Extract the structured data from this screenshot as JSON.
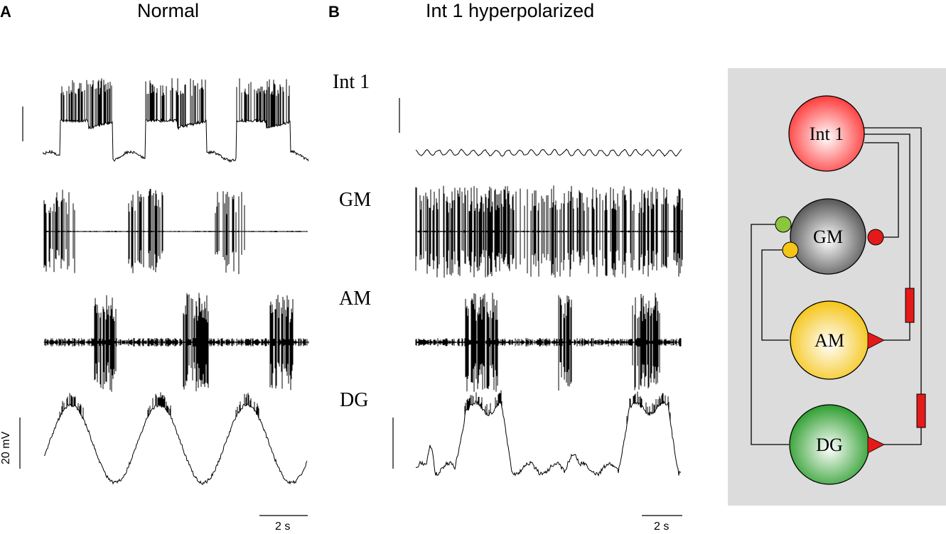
{
  "panels": {
    "a": {
      "letter": "A",
      "title": "Normal"
    },
    "b": {
      "letter": "B",
      "title": "Int 1 hyperpolarized"
    }
  },
  "trace_labels": [
    "Int 1",
    "GM",
    "AM",
    "DG"
  ],
  "scale_bars": {
    "voltage": "20 mV",
    "time_a": "2 s",
    "time_b": "2 s"
  },
  "circuit": {
    "neurons": [
      {
        "id": "int1",
        "label": "Int 1",
        "color": "#ff3b3b"
      },
      {
        "id": "gm",
        "label": "GM",
        "color": "#555555"
      },
      {
        "id": "am",
        "label": "AM",
        "color": "#f5c518"
      },
      {
        "id": "dg",
        "label": "DG",
        "color": "#2e9e2e"
      }
    ],
    "synapse_colors": {
      "inhibitory_red": "#e41a1a",
      "inhibitory_green": "#8cc63f",
      "inhibitory_yellow": "#f5c518",
      "electrical": "#e41a1a",
      "excitatory": "#e41a1a"
    },
    "background": "#dcdcdc"
  }
}
